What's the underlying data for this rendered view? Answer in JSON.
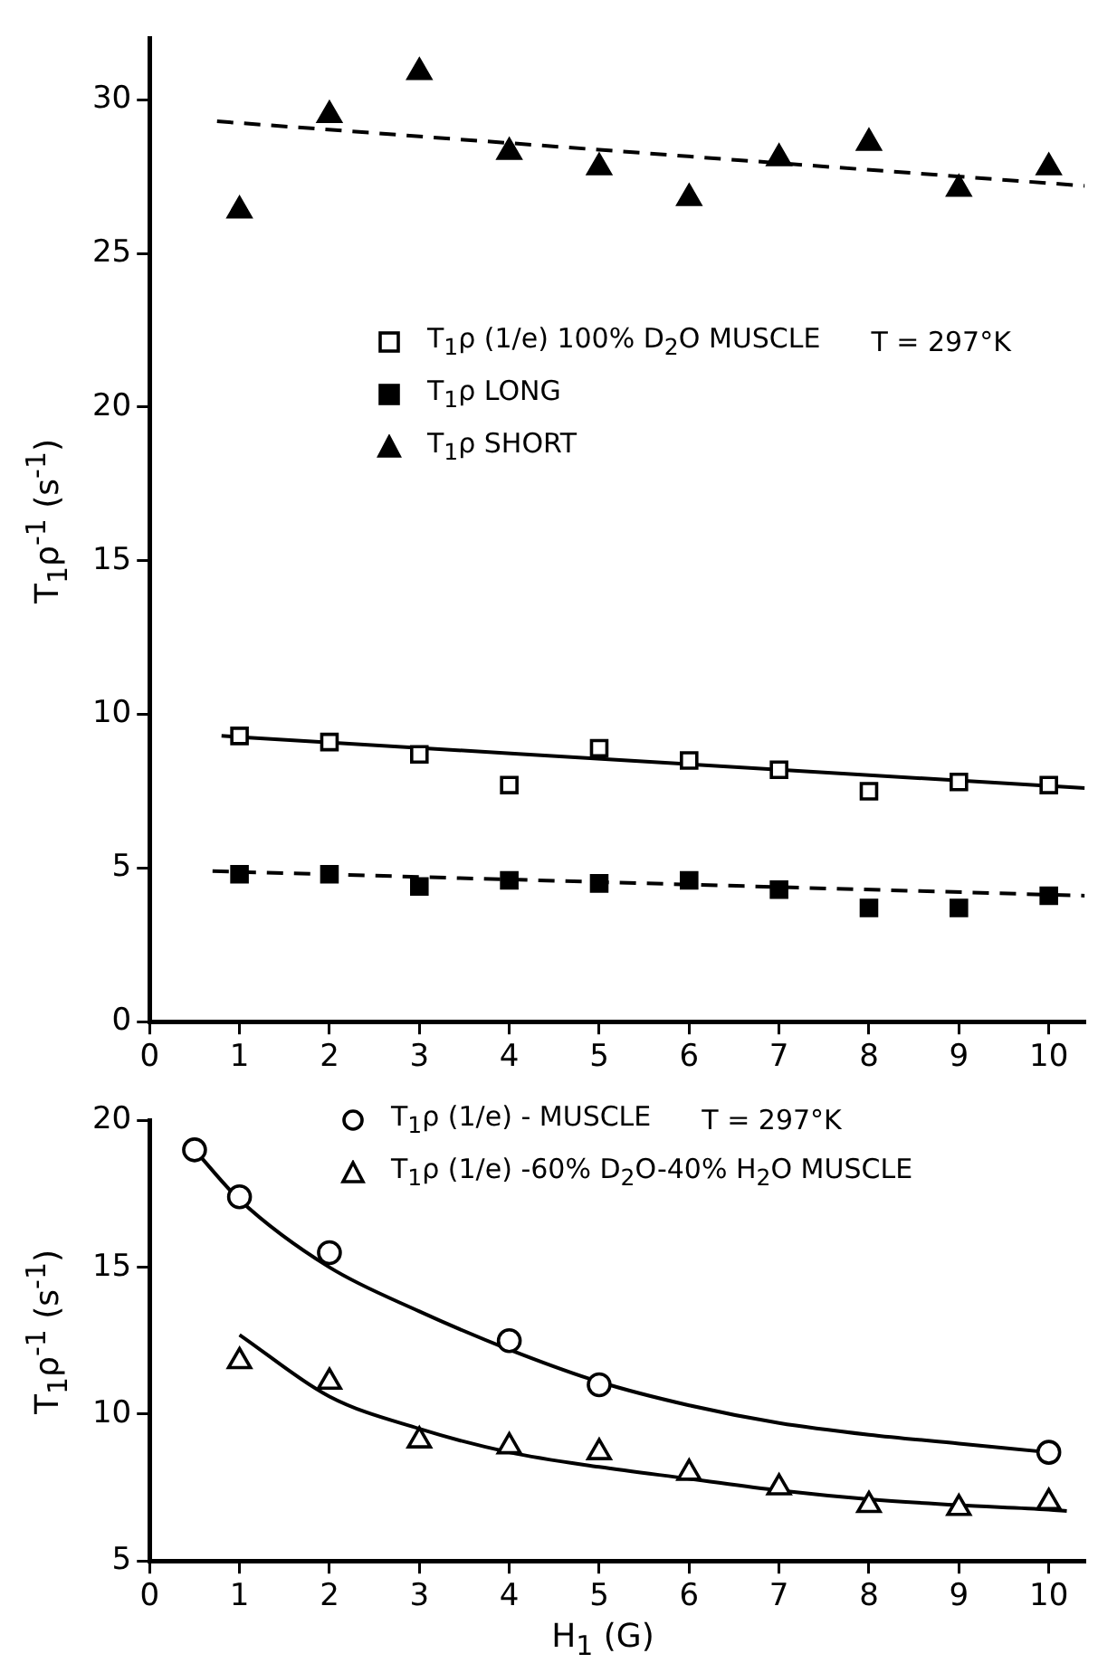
{
  "chart_data": [
    {
      "type": "scatter",
      "ylabel": "T$_{1}$ρ$^{-1}$ (s$^{-1}$)",
      "xlim": [
        0,
        10.4
      ],
      "xticks": [
        0,
        1,
        2,
        3,
        4,
        5,
        6,
        7,
        8,
        9,
        10
      ],
      "ylim": [
        0,
        32
      ],
      "yticks": [
        0,
        5,
        10,
        15,
        20,
        25,
        30
      ],
      "grid": false,
      "legend": "center",
      "annotations": [
        "T = 297°K"
      ],
      "series": [
        {
          "name": "T$_{1}$ρ (1/e) 100% D$_{2}$O MUSCLE",
          "color": "#ffffff",
          "marker": "square",
          "x": [
            1,
            2,
            3,
            4,
            5,
            6,
            7,
            8,
            9,
            10
          ],
          "values": [
            9.3,
            9.1,
            8.7,
            7.7,
            8.9,
            8.5,
            8.2,
            7.5,
            7.8,
            7.7
          ]
        },
        {
          "name": "T$_{1}$ρ LONG",
          "color": "#000000",
          "marker": "square",
          "x": [
            1,
            2,
            3,
            4,
            5,
            6,
            7,
            8,
            9,
            10
          ],
          "values": [
            4.8,
            4.8,
            4.4,
            4.6,
            4.5,
            4.6,
            4.3,
            3.7,
            3.7,
            4.1
          ]
        },
        {
          "name": "T$_{1}$ρ SHORT",
          "color": "#000000",
          "marker": "triangle",
          "x": [
            1,
            2,
            3,
            4,
            5,
            6,
            7,
            8,
            9,
            10
          ],
          "values": [
            26.4,
            29.5,
            30.9,
            28.3,
            27.8,
            26.8,
            28.1,
            28.6,
            27.1,
            27.8
          ]
        },
        {
          "type": "line",
          "color": "#000000",
          "marker": "none",
          "line_style": "solid",
          "x": [
            0.8,
            10.4
          ],
          "values": [
            9.3,
            7.6
          ]
        },
        {
          "type": "line",
          "color": "#000000",
          "marker": "none",
          "line_style": "dashed",
          "x": [
            0.7,
            10.4
          ],
          "values": [
            4.9,
            4.1
          ]
        },
        {
          "type": "line",
          "color": "#000000",
          "marker": "none",
          "line_style": "dashed",
          "x": [
            0.75,
            10.4
          ],
          "values": [
            29.3,
            27.2
          ]
        }
      ]
    },
    {
      "type": "scatter",
      "xlabel": "H$_{1}$ (G)",
      "ylabel": "T$_{1}$ρ$^{-1}$ (s$^{-1}$)",
      "xlim": [
        0,
        10.4
      ],
      "xticks": [
        0,
        1,
        2,
        3,
        4,
        5,
        6,
        7,
        8,
        9,
        10
      ],
      "ylim": [
        5,
        20
      ],
      "yticks": [
        5,
        10,
        15,
        20
      ],
      "grid": false,
      "legend": "top right",
      "annotations": [
        "T = 297°K"
      ],
      "series": [
        {
          "name": "T$_{1}$ρ (1/e) - MUSCLE",
          "color": "#ffffff",
          "marker": "circle",
          "x": [
            0.5,
            1,
            2,
            4,
            5,
            10
          ],
          "values": [
            19.0,
            17.4,
            15.5,
            12.5,
            11.0,
            8.7
          ]
        },
        {
          "name": "T$_{1}$ρ (1/e) -60% D$_{2}$O-40% H$_{2}$O MUSCLE",
          "color": "#ffffff",
          "marker": "triangle",
          "x": [
            1,
            2,
            3,
            4,
            5,
            6,
            7,
            8,
            9,
            10
          ],
          "values": [
            11.8,
            11.1,
            9.1,
            8.9,
            8.7,
            8.0,
            7.5,
            6.9,
            6.8,
            7.0
          ]
        },
        {
          "type": "line",
          "color": "#000000",
          "marker": "none",
          "line_style": "solid",
          "x": [
            0.5,
            1,
            2,
            3,
            4,
            5,
            6,
            7,
            8,
            9,
            10
          ],
          "values": [
            19.0,
            17.3,
            15.0,
            13.5,
            12.2,
            11.1,
            10.3,
            9.7,
            9.3,
            9.0,
            8.7
          ]
        },
        {
          "type": "line",
          "color": "#000000",
          "marker": "none",
          "line_style": "solid",
          "x": [
            1,
            2,
            3,
            4,
            5,
            6,
            7,
            8,
            9,
            10,
            10.2
          ],
          "values": [
            12.7,
            10.6,
            9.5,
            8.7,
            8.2,
            7.8,
            7.4,
            7.1,
            6.9,
            6.75,
            6.7
          ]
        }
      ]
    }
  ]
}
